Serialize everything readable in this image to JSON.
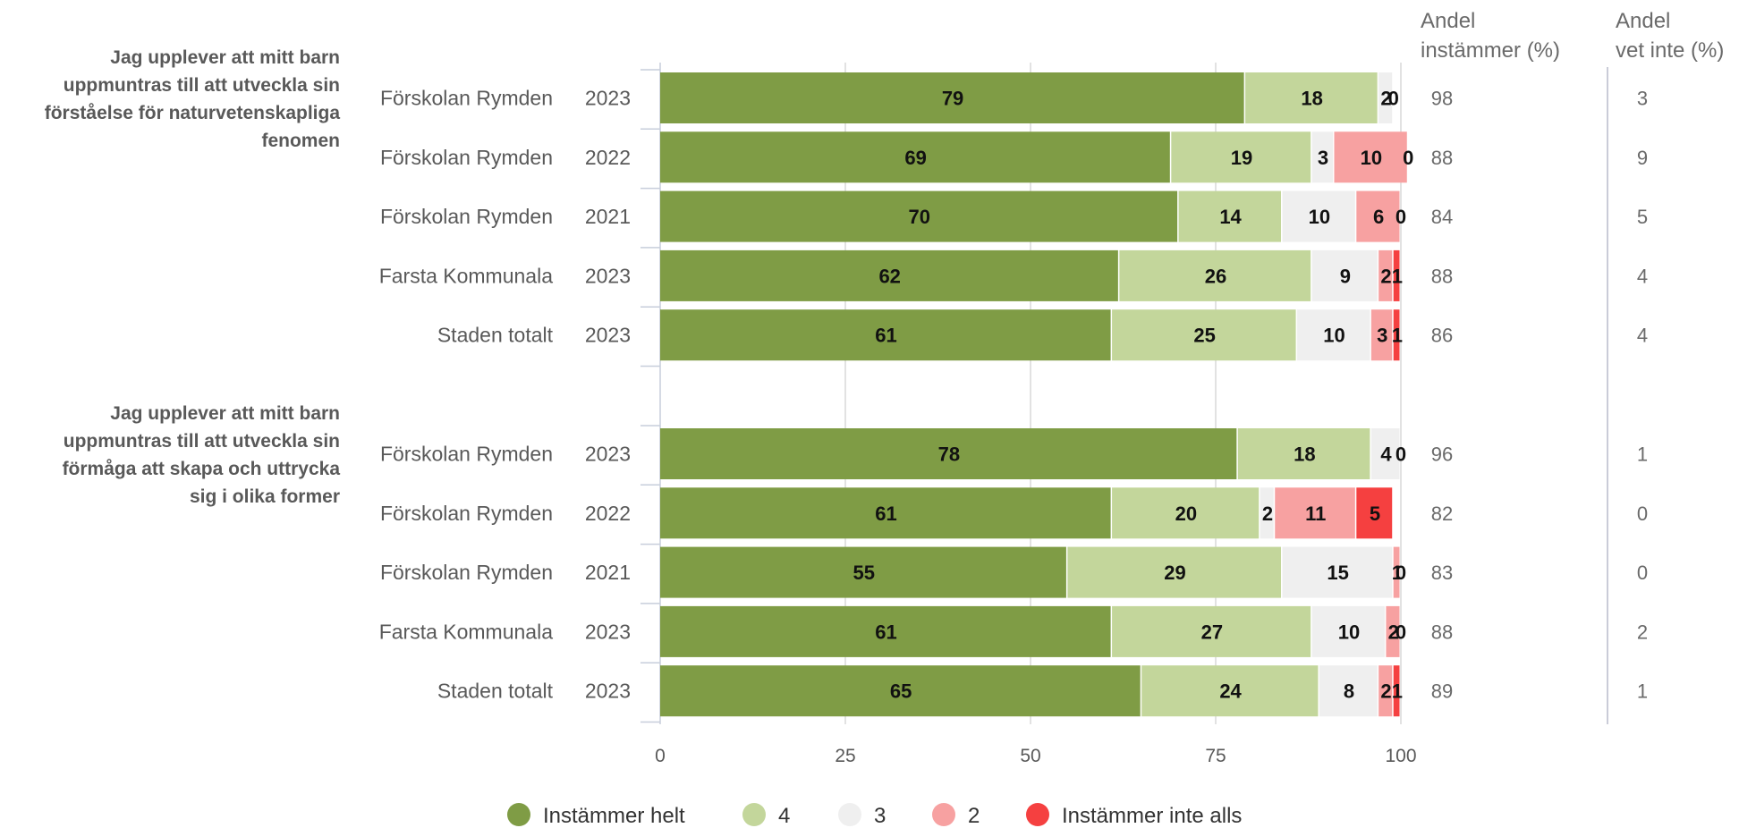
{
  "chart_data": {
    "type": "bar",
    "stacked": true,
    "orientation": "horizontal",
    "xlim": [
      0,
      100
    ],
    "x_ticks": [
      "0",
      "25",
      "50",
      "75",
      "100"
    ],
    "grid": true,
    "legend_position": "bottom",
    "columns": [
      {
        "line1": "Andel",
        "line2": "instämmer (%)"
      },
      {
        "line1": "Andel",
        "line2": "vet inte (%)"
      }
    ],
    "series": [
      {
        "name": "Instämmer helt",
        "color": "#7f9c45"
      },
      {
        "name": "4",
        "color": "#c3d69b"
      },
      {
        "name": "3",
        "color": "#efefef"
      },
      {
        "name": "2",
        "color": "#f7a1a1"
      },
      {
        "name": "Instämmer inte alls",
        "color": "#f54040"
      }
    ],
    "groups": [
      {
        "question_lines": [
          "Jag upplever att mitt barn",
          "uppmuntras till att utveckla sin",
          "förståelse för naturvetenskapliga",
          "fenomen"
        ],
        "rows": [
          {
            "unit": "Förskolan Rymden",
            "year": "2023",
            "values": [
              79,
              18,
              2,
              0,
              0
            ],
            "labels": [
              "79",
              "18",
              "2",
              "0",
              ""
            ],
            "andel_instammer": "98",
            "andel_vet_inte": "3"
          },
          {
            "unit": "Förskolan Rymden",
            "year": "2022",
            "values": [
              69,
              19,
              3,
              10,
              0
            ],
            "labels": [
              "69",
              "19",
              "3",
              "10",
              "0"
            ],
            "andel_instammer": "88",
            "andel_vet_inte": "9"
          },
          {
            "unit": "Förskolan Rymden",
            "year": "2021",
            "values": [
              70,
              14,
              10,
              6,
              0
            ],
            "labels": [
              "70",
              "14",
              "10",
              "6",
              "0"
            ],
            "andel_instammer": "84",
            "andel_vet_inte": "5"
          },
          {
            "unit": "Farsta Kommunala",
            "year": "2023",
            "values": [
              62,
              26,
              9,
              2,
              1
            ],
            "labels": [
              "62",
              "26",
              "9",
              "2",
              "1"
            ],
            "andel_instammer": "88",
            "andel_vet_inte": "4"
          },
          {
            "unit": "Staden totalt",
            "year": "2023",
            "values": [
              61,
              25,
              10,
              3,
              1
            ],
            "labels": [
              "61",
              "25",
              "10",
              "3",
              "1"
            ],
            "andel_instammer": "86",
            "andel_vet_inte": "4"
          }
        ]
      },
      {
        "question_lines": [
          "Jag upplever att mitt barn",
          "uppmuntras till att utveckla sin",
          "förmåga att skapa och uttrycka",
          "sig i olika former"
        ],
        "rows": [
          {
            "unit": "Förskolan Rymden",
            "year": "2023",
            "values": [
              78,
              18,
              4,
              0,
              0
            ],
            "labels": [
              "78",
              "18",
              "4",
              "0",
              ""
            ],
            "andel_instammer": "96",
            "andel_vet_inte": "1"
          },
          {
            "unit": "Förskolan Rymden",
            "year": "2022",
            "values": [
              61,
              20,
              2,
              11,
              5
            ],
            "labels": [
              "61",
              "20",
              "2",
              "11",
              "5"
            ],
            "andel_instammer": "82",
            "andel_vet_inte": "0"
          },
          {
            "unit": "Förskolan Rymden",
            "year": "2021",
            "values": [
              55,
              29,
              15,
              1,
              0
            ],
            "labels": [
              "55",
              "29",
              "15",
              "1",
              "0"
            ],
            "andel_instammer": "83",
            "andel_vet_inte": "0"
          },
          {
            "unit": "Farsta Kommunala",
            "year": "2023",
            "values": [
              61,
              27,
              10,
              2,
              0
            ],
            "labels": [
              "61",
              "27",
              "10",
              "2",
              "0"
            ],
            "andel_instammer": "88",
            "andel_vet_inte": "2"
          },
          {
            "unit": "Staden totalt",
            "year": "2023",
            "values": [
              65,
              24,
              8,
              2,
              1
            ],
            "labels": [
              "65",
              "24",
              "8",
              "2",
              "1"
            ],
            "andel_instammer": "89",
            "andel_vet_inte": "1"
          }
        ]
      }
    ]
  }
}
